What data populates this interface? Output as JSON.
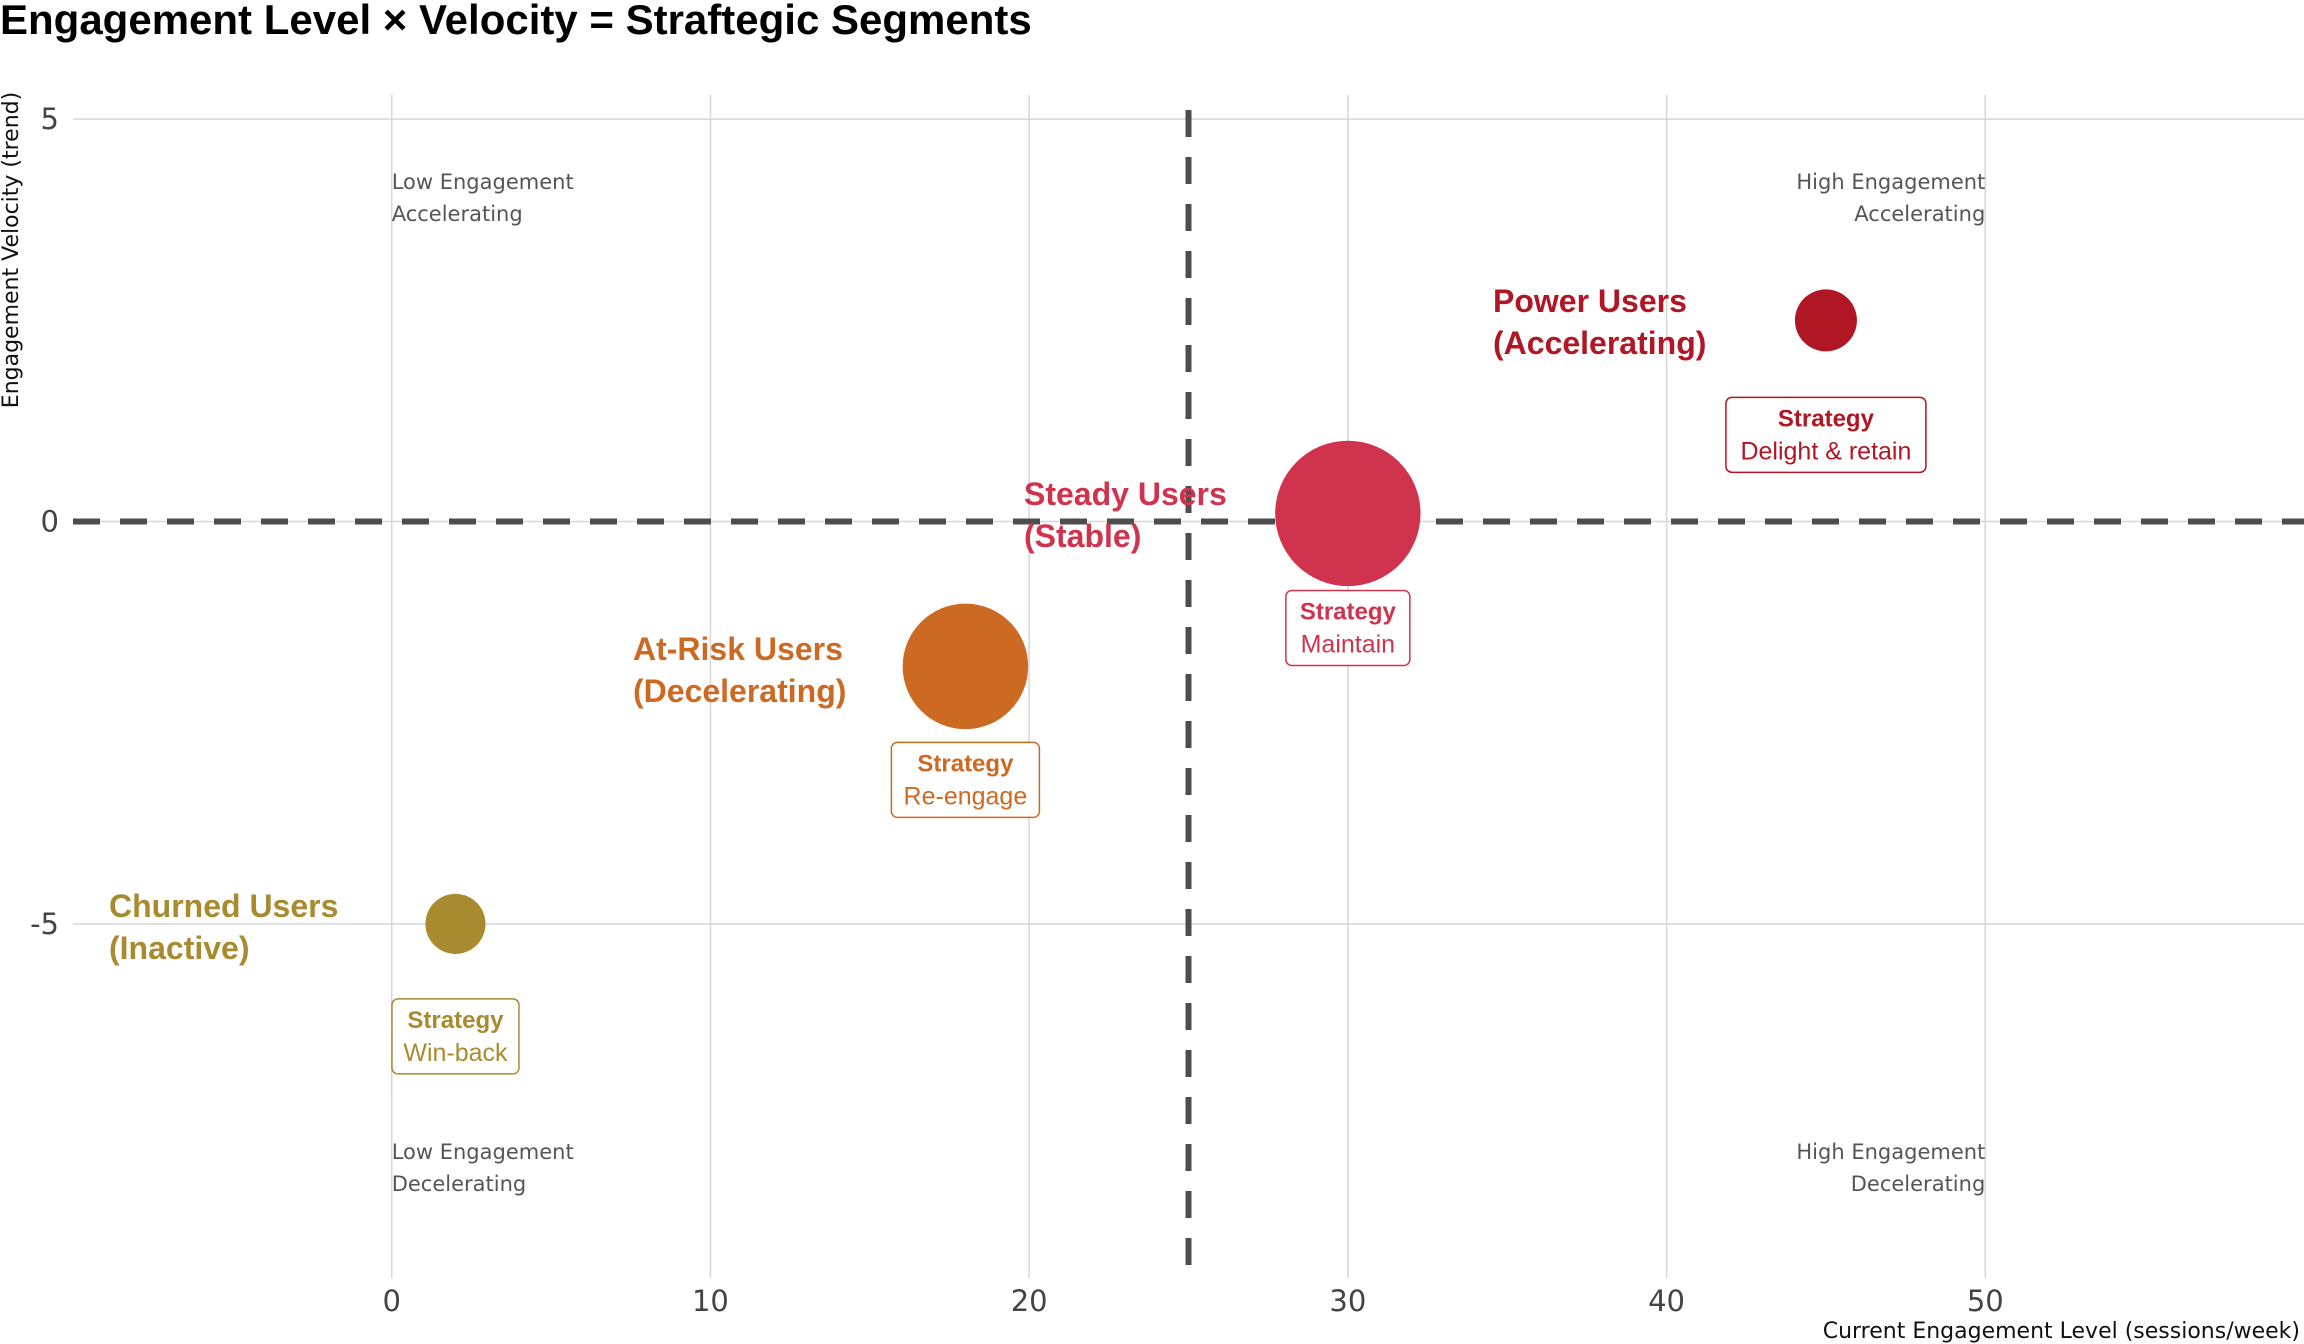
{
  "chart_data": {
    "type": "scatter",
    "title": "Engagement Level × Velocity = Straftegic Segments",
    "xlabel": "Current Engagement Level (sessions/week)",
    "ylabel": "Engagement Velocity (trend)",
    "xlim": [
      -10,
      60
    ],
    "ylim": [
      -9.4,
      5.3
    ],
    "xticks": [
      0,
      10,
      20,
      30,
      40,
      50
    ],
    "yticks": [
      5,
      0,
      -5
    ],
    "grid": true,
    "reference_lines": {
      "x": 25,
      "y": 0,
      "style": "dashed"
    },
    "quadrant_labels": [
      {
        "lines": [
          "Low Engagement",
          "Accelerating"
        ],
        "corner": "top-left"
      },
      {
        "lines": [
          "High Engagement",
          "Accelerating"
        ],
        "corner": "top-right"
      },
      {
        "lines": [
          "Low Engagement",
          "Decelerating"
        ],
        "corner": "bottom-left"
      },
      {
        "lines": [
          "High Engagement",
          "Decelerating"
        ],
        "corner": "bottom-right"
      }
    ],
    "segments": [
      {
        "name": "Power Users",
        "sub": "(Accelerating)",
        "x": 45,
        "y": 2.5,
        "size": 1.0,
        "color": "#B01623",
        "strategy_title": "Strategy",
        "strategy": "Delight & retain"
      },
      {
        "name": "Steady Users",
        "sub": "(Stable)",
        "x": 30,
        "y": 0.1,
        "size": 5.5,
        "color": "#D0334E",
        "strategy_title": "Strategy",
        "strategy": "Maintain"
      },
      {
        "name": "At-Risk Users",
        "sub": "(Decelerating)",
        "x": 18,
        "y": -1.8,
        "size": 4.1,
        "color": "#CC6A24",
        "strategy_title": "Strategy",
        "strategy": "Re-engage"
      },
      {
        "name": "Churned Users",
        "sub": "(Inactive)",
        "x": 2,
        "y": -5,
        "size": 0.94,
        "color": "#A88B2E",
        "strategy_title": "Strategy",
        "strategy": "Win-back"
      }
    ]
  }
}
